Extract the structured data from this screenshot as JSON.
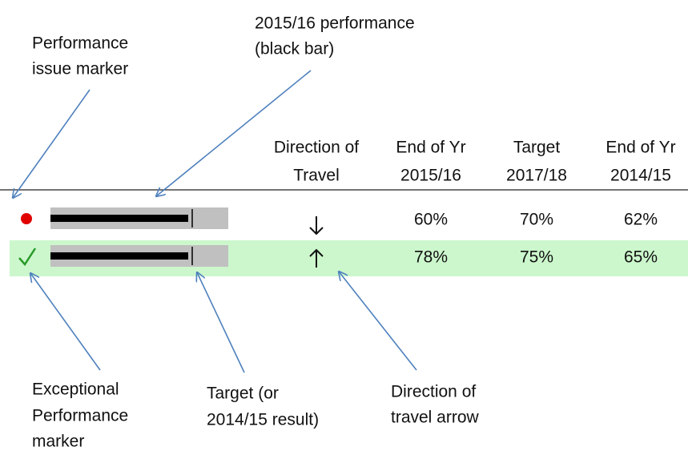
{
  "annotations": {
    "performance_bar": [
      "2015/16 performance",
      "(black bar)"
    ],
    "issue_marker": [
      "Performance",
      "issue marker"
    ],
    "exceptional_marker": [
      "Exceptional",
      "Performance",
      "marker"
    ],
    "target": [
      "Target (or",
      "2014/15 result)"
    ],
    "direction_arrow": [
      "Direction of",
      "travel arrow"
    ]
  },
  "table": {
    "headers": [
      [
        "Direction of",
        "Travel"
      ],
      [
        "End of Yr",
        "2015/16"
      ],
      [
        "Target",
        "2017/18"
      ],
      [
        "End of Yr",
        "2014/15"
      ]
    ],
    "rows": [
      [
        "60%",
        "70%",
        "62%"
      ],
      [
        "78%",
        "75%",
        "65%"
      ]
    ]
  }
}
